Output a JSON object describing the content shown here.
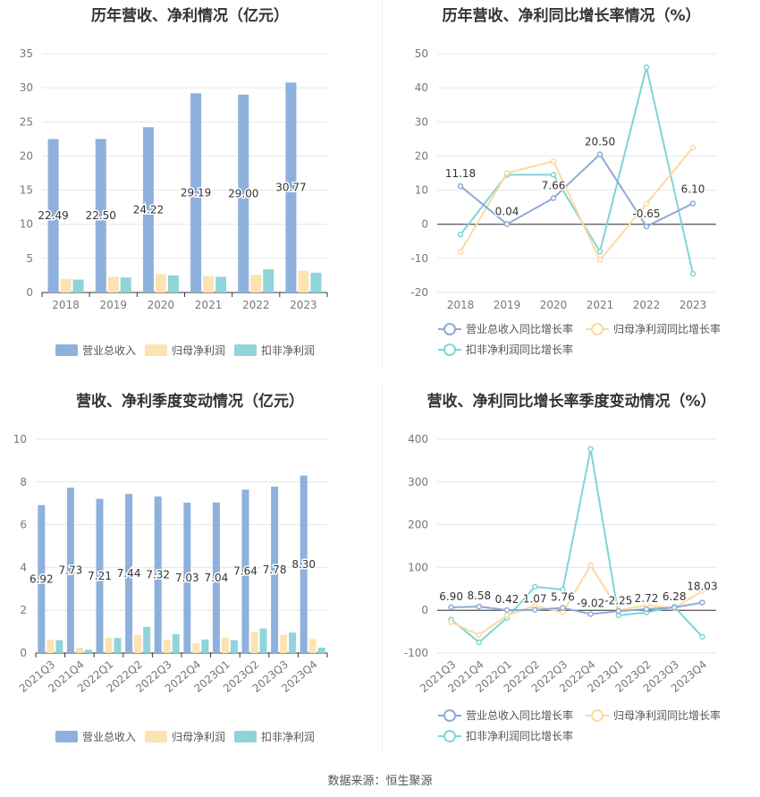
{
  "source": "数据来源：恒生聚源",
  "colors": {
    "revenue": "#8eb0dc",
    "netprofit": "#fde2b2",
    "deducted": "#8fd4d8",
    "revenue_line": "#8eaad6",
    "netprofit_line": "#fdd9a0",
    "deducted_line": "#80d4d6"
  },
  "chart_data": [
    {
      "type": "bar",
      "title": "历年营收、净利情况（亿元）",
      "categories": [
        "2018",
        "2019",
        "2020",
        "2021",
        "2022",
        "2023"
      ],
      "ylim": [
        0,
        35
      ],
      "yticks": [
        "0",
        "5",
        "10",
        "15",
        "20",
        "25",
        "30",
        "35"
      ],
      "series": [
        {
          "name": "营业总收入",
          "values": [
            22.49,
            22.5,
            24.22,
            29.19,
            29.0,
            30.77
          ],
          "labels": [
            "22.49",
            "22.50",
            "24.22",
            "29.19",
            "29.00",
            "30.77"
          ]
        },
        {
          "name": "归母净利润",
          "values": [
            2.0,
            2.3,
            2.7,
            2.4,
            2.6,
            3.2
          ]
        },
        {
          "name": "扣非净利润",
          "values": [
            1.9,
            2.2,
            2.5,
            2.3,
            3.4,
            2.9
          ]
        }
      ],
      "legend": "bottom"
    },
    {
      "type": "line",
      "title": "历年营收、净利同比增长率情况（%）",
      "categories": [
        "2018",
        "2019",
        "2020",
        "2021",
        "2022",
        "2023"
      ],
      "ylim": [
        -20,
        50
      ],
      "yticks": [
        "-20",
        "-10",
        "0",
        "10",
        "20",
        "30",
        "40",
        "50"
      ],
      "series": [
        {
          "name": "营业总收入同比增长率",
          "values": [
            11.18,
            0.04,
            7.66,
            20.5,
            -0.65,
            6.1
          ],
          "labels": [
            "11.18",
            "0.04",
            "7.66",
            "20.50",
            "-0.65",
            "6.10"
          ]
        },
        {
          "name": "归母净利润同比增长率",
          "values": [
            -8,
            15,
            18.5,
            -10.5,
            6,
            22.5
          ]
        },
        {
          "name": "扣非净利润同比增长率",
          "values": [
            -3,
            14.5,
            14.5,
            -8,
            46,
            -14.5
          ]
        }
      ],
      "legend": "bottom"
    },
    {
      "type": "bar",
      "title": "营收、净利季度变动情况（亿元）",
      "categories": [
        "2021Q3",
        "2021Q4",
        "2022Q1",
        "2022Q2",
        "2022Q3",
        "2022Q4",
        "2023Q1",
        "2023Q2",
        "2023Q3",
        "2023Q4"
      ],
      "ylim": [
        0,
        10
      ],
      "yticks": [
        "0",
        "2",
        "4",
        "6",
        "8",
        "10"
      ],
      "series": [
        {
          "name": "营业总收入",
          "values": [
            6.92,
            7.73,
            7.21,
            7.44,
            7.32,
            7.03,
            7.04,
            7.64,
            7.78,
            8.3
          ],
          "labels": [
            "6.92",
            "7.73",
            "7.21",
            "7.44",
            "7.32",
            "7.03",
            "7.04",
            "7.64",
            "7.78",
            "8.30"
          ]
        },
        {
          "name": "归母净利润",
          "values": [
            0.62,
            0.25,
            0.72,
            0.85,
            0.62,
            0.45,
            0.72,
            0.98,
            0.85,
            0.65
          ]
        },
        {
          "name": "扣非净利润",
          "values": [
            0.6,
            0.15,
            0.7,
            1.22,
            0.88,
            0.63,
            0.6,
            1.15,
            0.95,
            0.25
          ]
        }
      ],
      "legend": "bottom"
    },
    {
      "type": "line",
      "title": "营收、净利同比增长率季度变动情况（%）",
      "categories": [
        "2021Q3",
        "2021Q4",
        "2022Q1",
        "2022Q2",
        "2022Q3",
        "2022Q4",
        "2023Q1",
        "2023Q2",
        "2023Q3",
        "2023Q4"
      ],
      "ylim": [
        -100,
        400
      ],
      "yticks": [
        "-100",
        "0",
        "100",
        "200",
        "300",
        "400"
      ],
      "series": [
        {
          "name": "营业总收入同比增长率",
          "values": [
            6.9,
            8.58,
            0.42,
            1.07,
            5.76,
            -9.02,
            -2.25,
            2.72,
            6.28,
            18.03
          ],
          "labels": [
            "6.90",
            "8.58",
            "0.42",
            "1.07",
            "5.76",
            "-9.02",
            "-2.25",
            "2.72",
            "6.28",
            "18.03"
          ]
        },
        {
          "name": "归母净利润同比增长率",
          "values": [
            -28,
            -58,
            -12,
            10,
            -5,
            105,
            0,
            12,
            5,
            45
          ]
        },
        {
          "name": "扣非净利润同比增长率",
          "values": [
            -22,
            -75,
            -18,
            55,
            48,
            377,
            -12,
            -5,
            8,
            -62
          ]
        }
      ],
      "legend": "bottom"
    }
  ]
}
